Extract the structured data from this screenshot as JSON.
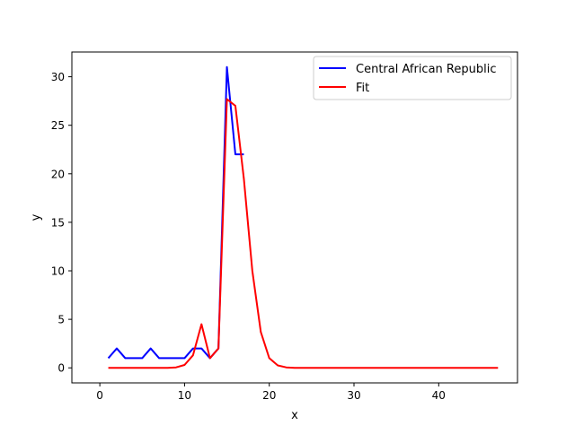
{
  "chart_data": {
    "type": "line",
    "xlabel": "x",
    "ylabel": "y",
    "xlim": [
      -3.3,
      49.3
    ],
    "ylim": [
      -1.55,
      32.55
    ],
    "xticks": [
      0,
      10,
      20,
      30,
      40
    ],
    "yticks": [
      0,
      5,
      10,
      15,
      20,
      25,
      30
    ],
    "xtick_labels": [
      "0",
      "10",
      "20",
      "30",
      "40"
    ],
    "ytick_labels": [
      "0",
      "5",
      "10",
      "15",
      "20",
      "25",
      "30"
    ],
    "grid": false,
    "legend_position": "top-right",
    "series": [
      {
        "name": "Central African Republic",
        "color": "#0000ff",
        "x": [
          1,
          2,
          3,
          4,
          5,
          6,
          7,
          8,
          9,
          10,
          11,
          12,
          13,
          14,
          15,
          16,
          17
        ],
        "y": [
          1,
          2,
          1,
          1,
          1,
          2,
          1,
          1,
          1,
          1,
          2,
          2,
          1,
          2,
          31,
          22,
          22
        ]
      },
      {
        "name": "Fit",
        "color": "#ff0000",
        "x": [
          1,
          2,
          3,
          4,
          5,
          6,
          7,
          8,
          9,
          10,
          11,
          12,
          13,
          14,
          15,
          16,
          17,
          18,
          19,
          20,
          21,
          22,
          23,
          24,
          25,
          26,
          27,
          28,
          29,
          30,
          31,
          32,
          33,
          34,
          35,
          36,
          37,
          38,
          39,
          40,
          41,
          42,
          43,
          44,
          45,
          46,
          47
        ],
        "y": [
          0,
          0,
          0,
          0,
          0,
          0,
          0,
          0,
          0.05,
          0.3,
          1.3,
          4.5,
          1.0,
          2.0,
          27.7,
          27.0,
          19.5,
          10.0,
          3.7,
          1.0,
          0.25,
          0.05,
          0,
          0,
          0,
          0,
          0,
          0,
          0,
          0,
          0,
          0,
          0,
          0,
          0,
          0,
          0,
          0,
          0,
          0,
          0,
          0,
          0,
          0,
          0,
          0,
          0
        ]
      }
    ]
  }
}
